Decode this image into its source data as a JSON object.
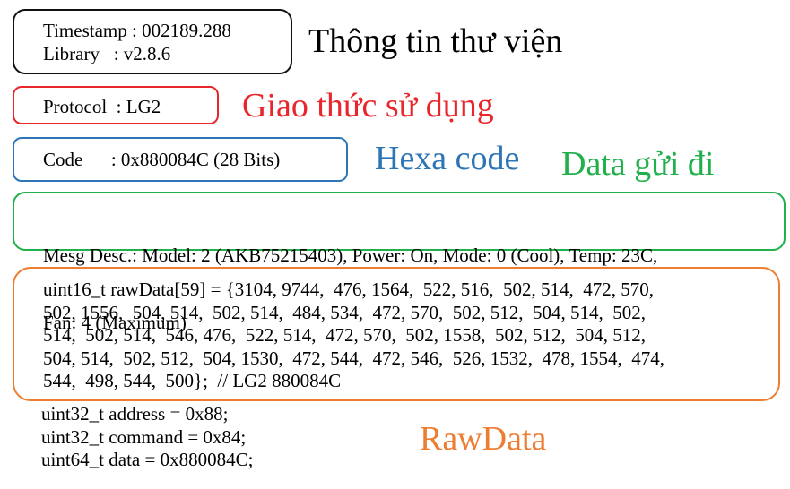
{
  "colors": {
    "info": "#111111",
    "protocol": "#e8262b",
    "code": "#2e75b6",
    "data": "#21b04b",
    "raw": "#ed7d31"
  },
  "info_box": {
    "timestamp": "Timestamp : 002189.288",
    "library": "Library   : v2.8.6"
  },
  "protocol_box": {
    "text": "Protocol  : LG2"
  },
  "code_box": {
    "text": "Code      : 0x880084C (28 Bits)"
  },
  "desc_box": {
    "lines": [
      "Mesg Desc.: Model: 2 (AKB75215403), Power: On, Mode: 0 (Cool), Temp: 23C,",
      "Fan: 4 (Maximum)"
    ]
  },
  "raw_box": {
    "lines": [
      "uint16_t rawData[59] = {3104, 9744,  476, 1564,  522, 516,  502, 514,  472, 570,",
      "502, 1556,  504, 514,  502, 514,  484, 534,  472, 570,  502, 512,  504, 514,  502,",
      "514,  502, 514,  546, 476,  522, 514,  472, 570,  502, 1558,  502, 512,  504, 512,",
      "504, 514,  502, 512,  504, 1530,  472, 544,  472, 546,  526, 1532,  478, 1554,  474,",
      "544,  498, 544,  500};  // LG2 880084C"
    ]
  },
  "vars": {
    "address": "uint32_t address = 0x88;",
    "command": "uint32_t command = 0x84;",
    "data": "uint64_t data = 0x880084C;"
  },
  "labels": {
    "info": "Thông tin thư viện",
    "protocol": "Giao thức sử dụng",
    "code": "Hexa code",
    "data": "Data gửi đi",
    "raw": "RawData"
  }
}
